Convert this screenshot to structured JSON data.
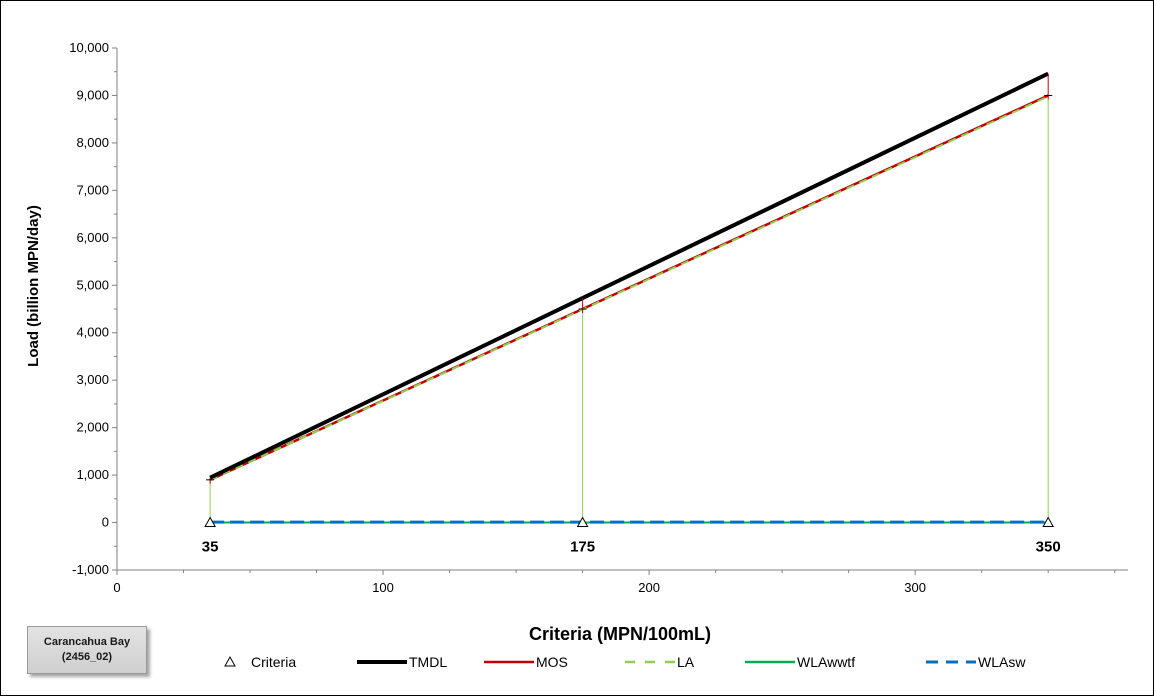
{
  "tag": {
    "line1": "Carancahua Bay",
    "line2": "(2456_02)"
  },
  "chart_data": {
    "type": "line",
    "title": "",
    "xlabel": "Criteria (MPN/100mL)",
    "ylabel": "Load (billion MPN/day)",
    "xlim": [
      0,
      380
    ],
    "ylim": [
      -1000,
      10000
    ],
    "x_ticks": [
      0,
      100,
      200,
      300
    ],
    "x_tick_labels": [
      "0",
      "100",
      "200",
      "300"
    ],
    "y_ticks": [
      -1000,
      0,
      1000,
      2000,
      3000,
      4000,
      5000,
      6000,
      7000,
      8000,
      9000,
      10000
    ],
    "y_tick_labels": [
      "-1,000",
      "0",
      "1,000",
      "2,000",
      "3,000",
      "4,000",
      "5,000",
      "6,000",
      "7,000",
      "8,000",
      "9,000",
      "10,000"
    ],
    "x": [
      35,
      175,
      350
    ],
    "point_labels": [
      "35",
      "175",
      "350"
    ],
    "legend_position": "bottom",
    "grid": false,
    "series": [
      {
        "name": "Criteria",
        "style": "triangle",
        "color": "#000000",
        "values": [
          0,
          0,
          0
        ]
      },
      {
        "name": "TMDL",
        "style": "solid-thick",
        "color": "#000000",
        "values": [
          945,
          4730,
          9460
        ]
      },
      {
        "name": "MOS",
        "style": "solid",
        "color": "#c00000",
        "values": [
          900,
          4500,
          9000
        ]
      },
      {
        "name": "LA",
        "style": "dashed",
        "color": "#92d050",
        "values": [
          898,
          4490,
          8980
        ]
      },
      {
        "name": "WLAwwtf",
        "style": "solid",
        "color": "#00b050",
        "values": [
          0,
          0,
          0
        ]
      },
      {
        "name": "WLAsw",
        "style": "long-dash",
        "color": "#0070c0",
        "values": [
          10,
          10,
          10
        ]
      }
    ]
  }
}
